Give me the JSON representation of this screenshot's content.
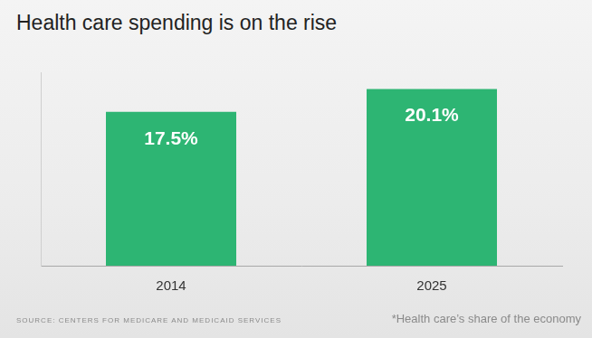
{
  "chart_data": {
    "type": "bar",
    "title": "Health care spending is on the rise",
    "categories": [
      "2014",
      "2025"
    ],
    "values": [
      17.5,
      20.1
    ],
    "value_labels": [
      "17.5%",
      "20.1%"
    ],
    "data_labels": true,
    "color": "#2db573",
    "ylim": [
      0,
      22
    ],
    "grid": false,
    "tick_labels": "x",
    "source": "SOURCE: CENTERS FOR MEDICARE AND MEDICAID SERVICES",
    "note": "*Health care’s share of the economy"
  }
}
